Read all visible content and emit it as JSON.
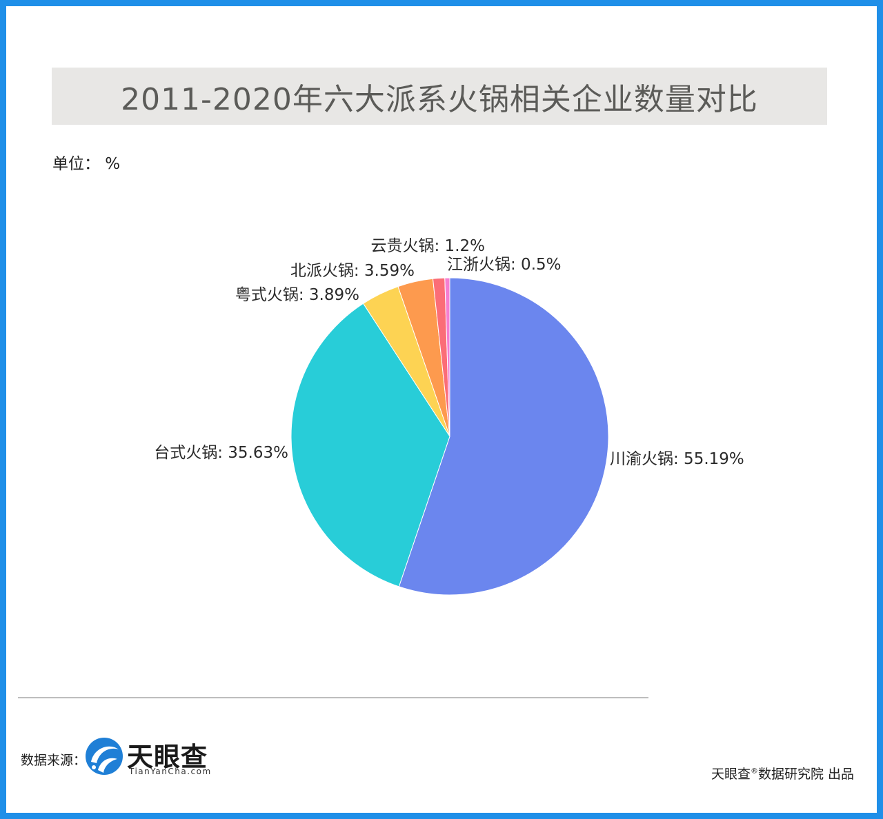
{
  "title": "2011-2020年六大派系火锅相关企业数量对比",
  "unit_label": "单位：  %",
  "chart_data": {
    "type": "pie",
    "title": "2011-2020年六大派系火锅相关企业数量对比",
    "unit": "%",
    "slices": [
      {
        "name": "川渝火锅",
        "value": 55.19,
        "label": "川渝火锅: 55.19%",
        "color": "#6b86ee"
      },
      {
        "name": "台式火锅",
        "value": 35.63,
        "label": "台式火锅: 35.63%",
        "color": "#28cdd8"
      },
      {
        "name": "粤式火锅",
        "value": 3.89,
        "label": "粤式火锅: 3.89%",
        "color": "#fdd353"
      },
      {
        "name": "北派火锅",
        "value": 3.59,
        "label": "北派火锅: 3.59%",
        "color": "#fd9a4e"
      },
      {
        "name": "云贵火锅",
        "value": 1.2,
        "label": "云贵火锅: 1.2%",
        "color": "#fb6d77"
      },
      {
        "name": "江浙火锅",
        "value": 0.5,
        "label": "江浙火锅: 0.5%",
        "color": "#f57ed0"
      }
    ]
  },
  "footer": {
    "source_label": "数据来源：",
    "logo_name": "天眼查",
    "logo_domain": "TianYanCha.com",
    "credit_name": "天眼查",
    "credit_mark": "®",
    "credit_rest": "数据研究院 出品"
  },
  "colors": {
    "frame": "#1f8fe8",
    "title_bg": "#e8e7e5",
    "logo": "#1f7fd6"
  }
}
